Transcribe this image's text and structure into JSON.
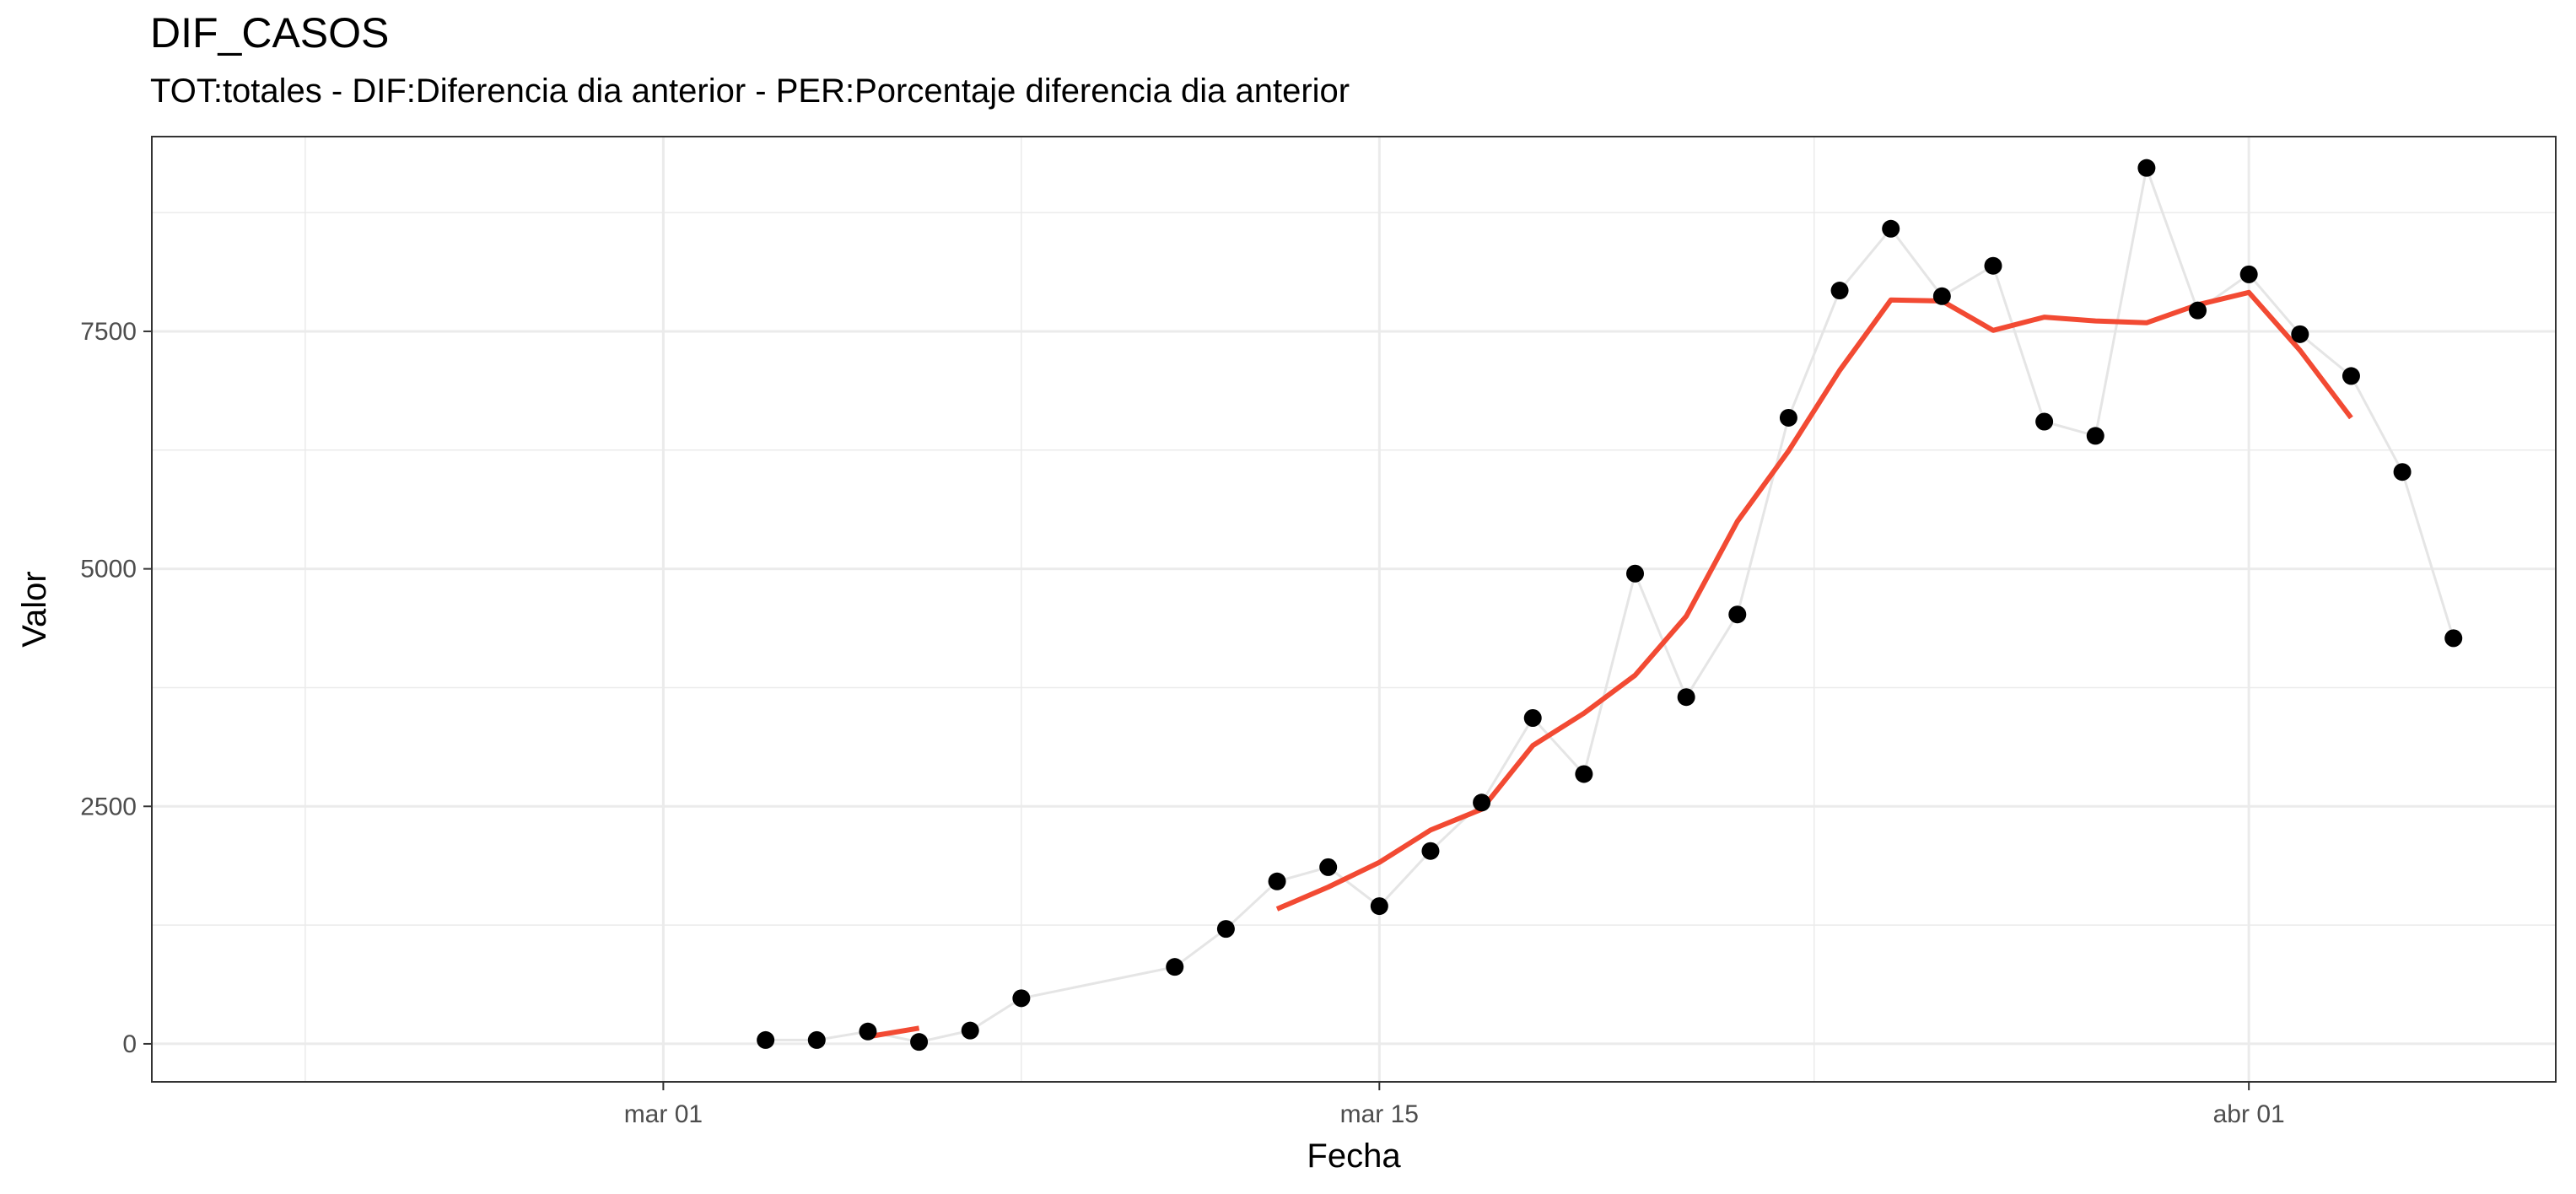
{
  "chart_data": {
    "type": "line",
    "title": "DIF_CASOS",
    "subtitle": "TOT:totales - DIF:Diferencia dia anterior - PER:Porcentaje diferencia dia anterior",
    "xlabel": "Fecha",
    "ylabel": "Valor",
    "x_range": [
      "2020-02-20",
      "2020-04-07"
    ],
    "ylim": [
      -400,
      9550
    ],
    "x_ticks": [
      {
        "date": "2020-03-01",
        "label": "mar 01"
      },
      {
        "date": "2020-03-15",
        "label": "mar 15"
      },
      {
        "date": "2020-04-01",
        "label": "abr 01"
      }
    ],
    "y_ticks": [
      {
        "value": 0,
        "label": "0"
      },
      {
        "value": 2500,
        "label": "2500"
      },
      {
        "value": 5000,
        "label": "5000"
      },
      {
        "value": 7500,
        "label": "7500"
      }
    ],
    "grid": true,
    "legend": "none",
    "colors": {
      "points": "#000000",
      "connecting_line": "#e5e5e5",
      "moving_average": "#f24a33",
      "grid": "#ebebeb",
      "panel_border": "#333333"
    },
    "series": [
      {
        "style": "points-with-light-line",
        "x": [
          "2020-03-03",
          "2020-03-04",
          "2020-03-05",
          "2020-03-06",
          "2020-03-07",
          "2020-03-08",
          "2020-03-11",
          "2020-03-12",
          "2020-03-13",
          "2020-03-14",
          "2020-03-15",
          "2020-03-16",
          "2020-03-17",
          "2020-03-18",
          "2020-03-19",
          "2020-03-20",
          "2020-03-21",
          "2020-03-22",
          "2020-03-23",
          "2020-03-24",
          "2020-03-25",
          "2020-03-26",
          "2020-03-27",
          "2020-03-28",
          "2020-03-29",
          "2020-03-30",
          "2020-03-31",
          "2020-04-01",
          "2020-04-02",
          "2020-04-03",
          "2020-04-04",
          "2020-04-05"
        ],
        "y": [
          40,
          40,
          130,
          20,
          140,
          480,
          810,
          1210,
          1710,
          1860,
          1450,
          2030,
          2540,
          3430,
          2840,
          4950,
          3650,
          4520,
          6590,
          7930,
          8580,
          7870,
          8190,
          6550,
          6400,
          9220,
          7720,
          8100,
          7470,
          7030,
          6020,
          4270
        ]
      },
      {
        "style": "moving-average-line",
        "segments": [
          {
            "x": [
              "2020-03-05",
              "2020-03-06"
            ],
            "y": [
              75,
              165
            ]
          },
          {
            "x": [
              "2020-03-13",
              "2020-03-14",
              "2020-03-15",
              "2020-03-16",
              "2020-03-17",
              "2020-03-18",
              "2020-03-19",
              "2020-03-20",
              "2020-03-21",
              "2020-03-22",
              "2020-03-23",
              "2020-03-24",
              "2020-03-25",
              "2020-03-26",
              "2020-03-27",
              "2020-03-28",
              "2020-03-29",
              "2020-03-30",
              "2020-03-31",
              "2020-04-01",
              "2020-04-02",
              "2020-04-03"
            ],
            "y": [
              1420,
              1650,
              1910,
              2250,
              2470,
              3140,
              3480,
              3880,
              4500,
              5500,
              6240,
              7090,
              7830,
              7820,
              7510,
              7650,
              7610,
              7590,
              7780,
              7910,
              7300,
              6590
            ]
          }
        ]
      }
    ]
  }
}
